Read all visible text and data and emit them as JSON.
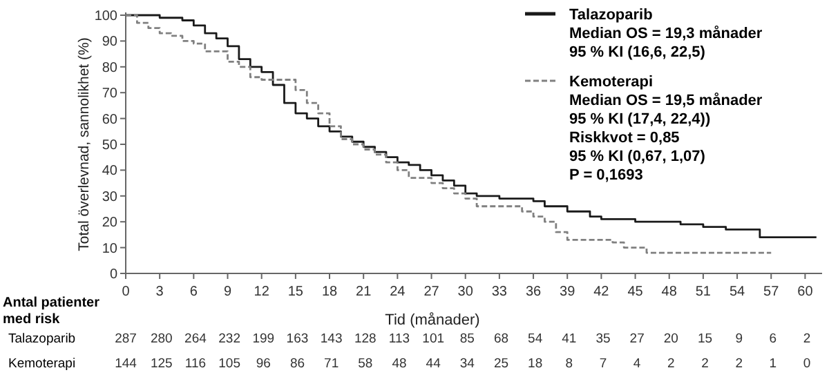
{
  "chart_data": {
    "type": "step",
    "xlabel": "Tid (månader)",
    "ylabel": "Total överlevnad, sannolikhet (%)",
    "xlim": [
      0,
      61.5
    ],
    "ylim": [
      0,
      100
    ],
    "xticks": [
      0,
      3,
      6,
      9,
      12,
      15,
      18,
      21,
      24,
      27,
      30,
      33,
      36,
      39,
      42,
      45,
      48,
      51,
      54,
      57,
      60
    ],
    "yticks": [
      0,
      10,
      20,
      30,
      40,
      50,
      60,
      70,
      80,
      90,
      100
    ],
    "legend": "top right",
    "grid": false,
    "series": [
      {
        "name": "Talazoparib",
        "color": "#1a1a1a",
        "line_style": "solid",
        "x": [
          0,
          3,
          5,
          6,
          7,
          8,
          9,
          10,
          11,
          12,
          13,
          14,
          15,
          16,
          17,
          18,
          19,
          20,
          21,
          22,
          23,
          24,
          25,
          26,
          27,
          28,
          29,
          30,
          31,
          33,
          36,
          37,
          39,
          41,
          42,
          45,
          49,
          51,
          53,
          56,
          61
        ],
        "values": [
          100,
          99,
          98,
          96,
          93,
          91,
          88,
          83,
          80,
          78,
          73,
          66,
          62,
          60,
          57,
          55,
          53,
          51,
          49,
          47,
          45,
          43,
          42,
          40,
          38,
          36,
          34,
          31,
          30,
          29,
          28,
          26,
          24,
          22,
          21,
          20,
          19,
          18,
          17,
          14,
          14
        ]
      },
      {
        "name": "Kemoterapi",
        "color": "#808080",
        "line_style": "dashed",
        "x": [
          0,
          1,
          2,
          3,
          4,
          5,
          6,
          7,
          9,
          10,
          11,
          12,
          15,
          16,
          17,
          18,
          19,
          20,
          21,
          22,
          23,
          24,
          25,
          27,
          28,
          29,
          30,
          31,
          35,
          36,
          37,
          38,
          39,
          43,
          44,
          46,
          57
        ],
        "values": [
          100,
          97,
          95,
          93,
          92,
          90,
          89,
          86,
          82,
          80,
          76,
          75,
          71,
          66,
          62,
          57,
          52,
          50,
          48,
          46,
          43,
          40,
          37,
          35,
          33,
          31,
          29,
          26,
          24,
          22,
          20,
          16,
          13,
          12,
          10,
          8,
          8
        ]
      }
    ],
    "annotations": [
      "Median OS = 19,3 månader",
      "95 % KI (16,6, 22,5)",
      "Median OS = 19,5 månader",
      "95 % KI (17,4, 22,4))",
      "Riskkvot = 0,85",
      "95 % KI (0,67, 1,07)",
      "P = 0,1693",
      "Antal patienter med risk",
      "287 280 264 232 199 163 143 128 113 101 85 68 54 41 35 27 20 15 9 6 2",
      "144 125 116 105 96 86 71 58 48 44 34 25 18 8 7 4 2 2 2 1 0"
    ]
  }
}
